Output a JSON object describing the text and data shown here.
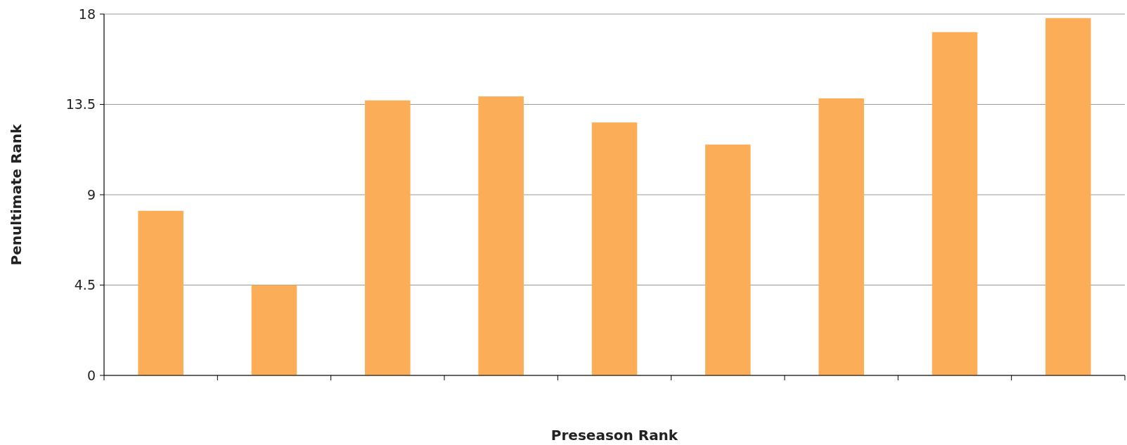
{
  "chart_data": {
    "type": "bar",
    "xlabel": "Preseason Rank",
    "ylabel": "Penultimate Rank",
    "categories": [
      null,
      null,
      null,
      null,
      null,
      null,
      null,
      null,
      null
    ],
    "values": [
      8.2,
      4.5,
      13.7,
      13.9,
      12.6,
      11.5,
      13.8,
      17.1,
      17.8
    ],
    "color": "#fbad58",
    "ylim": [
      0,
      18
    ],
    "yticks": [
      0,
      4.5,
      9,
      13.5,
      18
    ],
    "grid": "y"
  }
}
